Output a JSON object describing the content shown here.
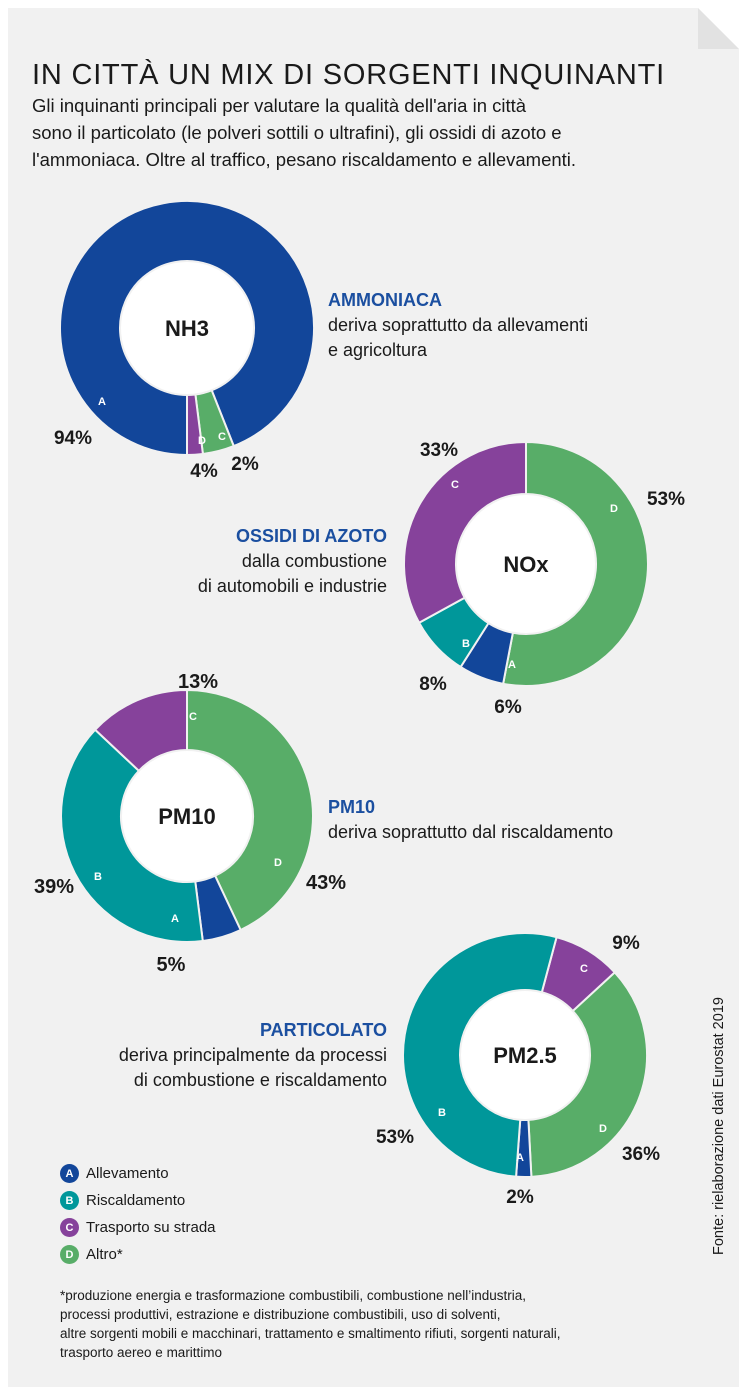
{
  "title": "IN CITTÀ UN MIX DI SORGENTI INQUINANTI",
  "intro": {
    "line1": "Gli inquinanti principali per valutare la qualità dell'aria in città",
    "line2": "sono il particolato (le polveri sottili o ultrafini), gli ossidi di azoto e",
    "line3": "l'ammoniaca. Oltre al traffico, pesano riscaldamento e allevamenti."
  },
  "colors": {
    "A": "#12469a",
    "B": "#00979a",
    "C": "#86429b",
    "D": "#58ad68",
    "background": "#f1f1f1",
    "heading": "#1b4fa0"
  },
  "chart_data": [
    {
      "type": "pie",
      "center_label": "NH3",
      "heading": "AMMONIACA",
      "description": [
        "deriva soprattutto da allevamenti",
        "e agricoltura"
      ],
      "slices": [
        {
          "key": "A",
          "value": 94,
          "label": "94%"
        },
        {
          "key": "D",
          "value": 4,
          "label": "4%"
        },
        {
          "key": "C",
          "value": 2,
          "label": "2%"
        }
      ]
    },
    {
      "type": "pie",
      "center_label": "NOx",
      "heading": "OSSIDI DI AZOTO",
      "description": [
        "dalla combustione",
        "di automobili e industrie"
      ],
      "slices": [
        {
          "key": "D",
          "value": 53,
          "label": "53%"
        },
        {
          "key": "A",
          "value": 6,
          "label": "6%"
        },
        {
          "key": "B",
          "value": 8,
          "label": "8%"
        },
        {
          "key": "C",
          "value": 33,
          "label": "33%"
        }
      ]
    },
    {
      "type": "pie",
      "center_label": "PM10",
      "heading": "PM10",
      "description": [
        "deriva soprattutto dal riscaldamento"
      ],
      "slices": [
        {
          "key": "D",
          "value": 43,
          "label": "43%"
        },
        {
          "key": "A",
          "value": 5,
          "label": "5%"
        },
        {
          "key": "B",
          "value": 39,
          "label": "39%"
        },
        {
          "key": "C",
          "value": 13,
          "label": "13%"
        }
      ]
    },
    {
      "type": "pie",
      "center_label": "PM2.5",
      "heading": "PARTICOLATO",
      "description": [
        "deriva principalmente da processi",
        "di combustione e riscaldamento"
      ],
      "slices": [
        {
          "key": "C",
          "value": 9,
          "label": "9%"
        },
        {
          "key": "D",
          "value": 36,
          "label": "36%"
        },
        {
          "key": "A",
          "value": 2,
          "label": "2%"
        },
        {
          "key": "B",
          "value": 53,
          "label": "53%"
        }
      ]
    }
  ],
  "legend": [
    {
      "key": "A",
      "label": "Allevamento"
    },
    {
      "key": "B",
      "label": "Riscaldamento"
    },
    {
      "key": "C",
      "label": "Trasporto su strada"
    },
    {
      "key": "D",
      "label": "Altro*"
    }
  ],
  "footnote": {
    "line1": "*produzione energia e trasformazione combustibili, combustione nell’industria,",
    "line2": "processi produttivi, estrazione e distribuzione combustibili, uso di solventi,",
    "line3": "altre sorgenti mobili e macchinari, trattamento e smaltimento rifiuti, sorgenti naturali,",
    "line4": "trasporto aereo e marittimo"
  },
  "source": "Fonte: rielaborazione dati Eurostat 2019"
}
